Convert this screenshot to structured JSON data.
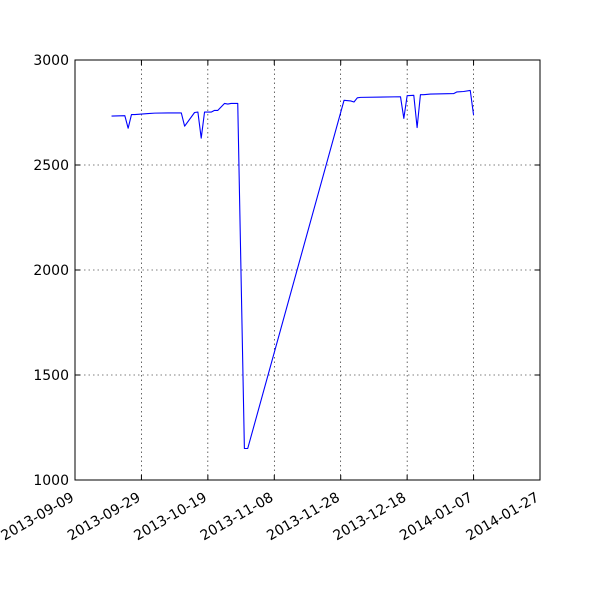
{
  "chart_data": {
    "type": "line",
    "title": "",
    "xlabel": "",
    "ylabel": "",
    "x_axis_type": "date",
    "xlim": [
      "2013-09-09",
      "2014-01-27"
    ],
    "ylim": [
      1000,
      3000
    ],
    "x_ticks": [
      "2013-09-09",
      "2013-09-29",
      "2013-10-19",
      "2013-11-08",
      "2013-11-28",
      "2013-12-18",
      "2014-01-07",
      "2014-01-27"
    ],
    "y_ticks": [
      1000,
      1500,
      2000,
      2500,
      3000
    ],
    "grid": true,
    "legend": "none",
    "series_color": "#0000ff",
    "series": [
      {
        "x": [
          "2013-09-20",
          "2013-09-24",
          "2013-09-25",
          "2013-09-26",
          "2013-09-27",
          "2013-10-01",
          "2013-10-03",
          "2013-10-07",
          "2013-10-11",
          "2013-10-12",
          "2013-10-15",
          "2013-10-16",
          "2013-10-17",
          "2013-10-18",
          "2013-10-20",
          "2013-10-21",
          "2013-10-22",
          "2013-10-24",
          "2013-10-25",
          "2013-10-26",
          "2013-10-28",
          "2013-10-30",
          "2013-10-31",
          "2013-11-29",
          "2013-12-01",
          "2013-12-02",
          "2013-12-03",
          "2013-12-04",
          "2013-12-16",
          "2013-12-17",
          "2013-12-18",
          "2013-12-20",
          "2013-12-21",
          "2013-12-22",
          "2013-12-23",
          "2013-12-25",
          "2014-01-01",
          "2014-01-02",
          "2014-01-04",
          "2014-01-06",
          "2014-01-07"
        ],
        "y": [
          2733,
          2735,
          2675,
          2740,
          2740,
          2745,
          2747,
          2748,
          2748,
          2685,
          2750,
          2752,
          2628,
          2752,
          2752,
          2760,
          2760,
          2793,
          2790,
          2793,
          2793,
          1150,
          1150,
          2808,
          2805,
          2800,
          2820,
          2822,
          2825,
          2722,
          2830,
          2832,
          2678,
          2835,
          2835,
          2838,
          2840,
          2848,
          2850,
          2855,
          2738
        ]
      }
    ]
  }
}
